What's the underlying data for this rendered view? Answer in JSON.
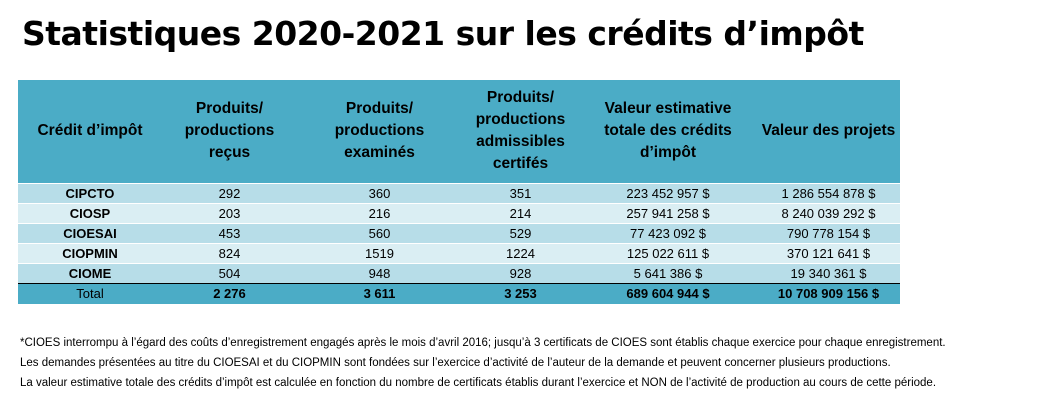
{
  "title": "Statistiques 2020-2021 sur les crédits d’impôt",
  "table": {
    "headers": [
      "Crédit d’impôt",
      "Produits/ productions reçus",
      "Produits/ productions examinés",
      "Produits/ productions admissibles certifés",
      "Valeur estimative totale des crédits d’impôt",
      "Valeur des projets"
    ],
    "rows": [
      [
        "CIPCTO",
        "292",
        "360",
        "351",
        "223 452 957 $",
        "1 286 554 878 $"
      ],
      [
        "CIOSP",
        "203",
        "216",
        "214",
        "257 941 258 $",
        "8 240 039 292 $"
      ],
      [
        "CIOESAI",
        "453",
        "560",
        "529",
        "77 423 092 $",
        "790 778 154 $"
      ],
      [
        "CIOPMIN",
        "824",
        "1519",
        "1224",
        "125 022 611 $",
        "370 121 641 $"
      ],
      [
        "CIOME",
        "504",
        "948",
        "928",
        "5 641 386 $",
        "19 340 361 $"
      ]
    ],
    "total": [
      "Total",
      "2 276",
      "3 611",
      "3 253",
      "689 604 944 $",
      "10 708 909 156 $"
    ]
  },
  "notes": [
    "*CIOES interrompu à l’égard des coûts d’enregistrement engagés après le mois d’avril 2016; jusqu’à 3 certificats de CIOES sont établis chaque exercice pour chaque enregistrement.",
    "Les demandes présentées au titre du CIOESAI et du CIOPMIN sont fondées sur l’exercice d’activité de l’auteur de la demande et peuvent concerner plusieurs productions.",
    "La valeur estimative totale des crédits d’impôt est calculée en fonction du nombre de certificats établis durant l’exercice et NON de l’activité de production au cours de cette période."
  ],
  "colors": {
    "header_bg": "#4bacc6",
    "row_dark": "#b7dde8",
    "row_light": "#daeef3"
  }
}
